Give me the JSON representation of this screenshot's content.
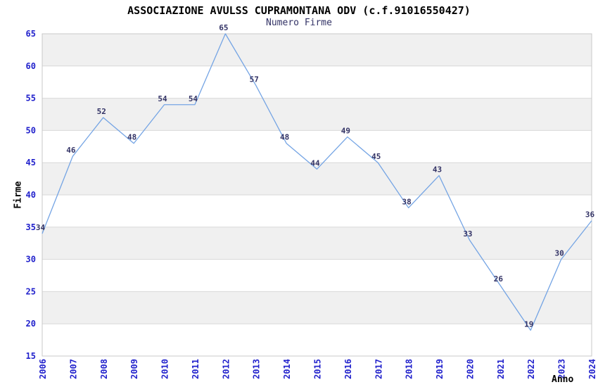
{
  "chart_data": {
    "type": "line",
    "title": "ASSOCIAZIONE AVULSS CUPRAMONTANA ODV (c.f.91016550427)",
    "subtitle": "Numero Firme",
    "xlabel": "Anno",
    "ylabel": "Firme",
    "x": [
      2006,
      2007,
      2008,
      2009,
      2010,
      2011,
      2012,
      2013,
      2014,
      2015,
      2016,
      2017,
      2018,
      2019,
      2020,
      2021,
      2022,
      2023,
      2024
    ],
    "values": [
      34,
      46,
      52,
      48,
      54,
      54,
      65,
      57,
      48,
      44,
      49,
      45,
      38,
      43,
      33,
      26,
      19,
      30,
      36
    ],
    "ylim": [
      15,
      65
    ],
    "yticks": [
      15,
      20,
      25,
      30,
      35,
      40,
      45,
      50,
      55,
      60,
      65
    ],
    "grid": true,
    "banded": true,
    "legend": "none",
    "colors": {
      "line": "#74a4e4",
      "band": "#f0f0f0",
      "grid": "#d8d8d8",
      "border": "#c8c8c8",
      "tick_label": "#2222cc",
      "data_label": "#333366",
      "title": "#000000",
      "subtitle": "#333366"
    }
  }
}
